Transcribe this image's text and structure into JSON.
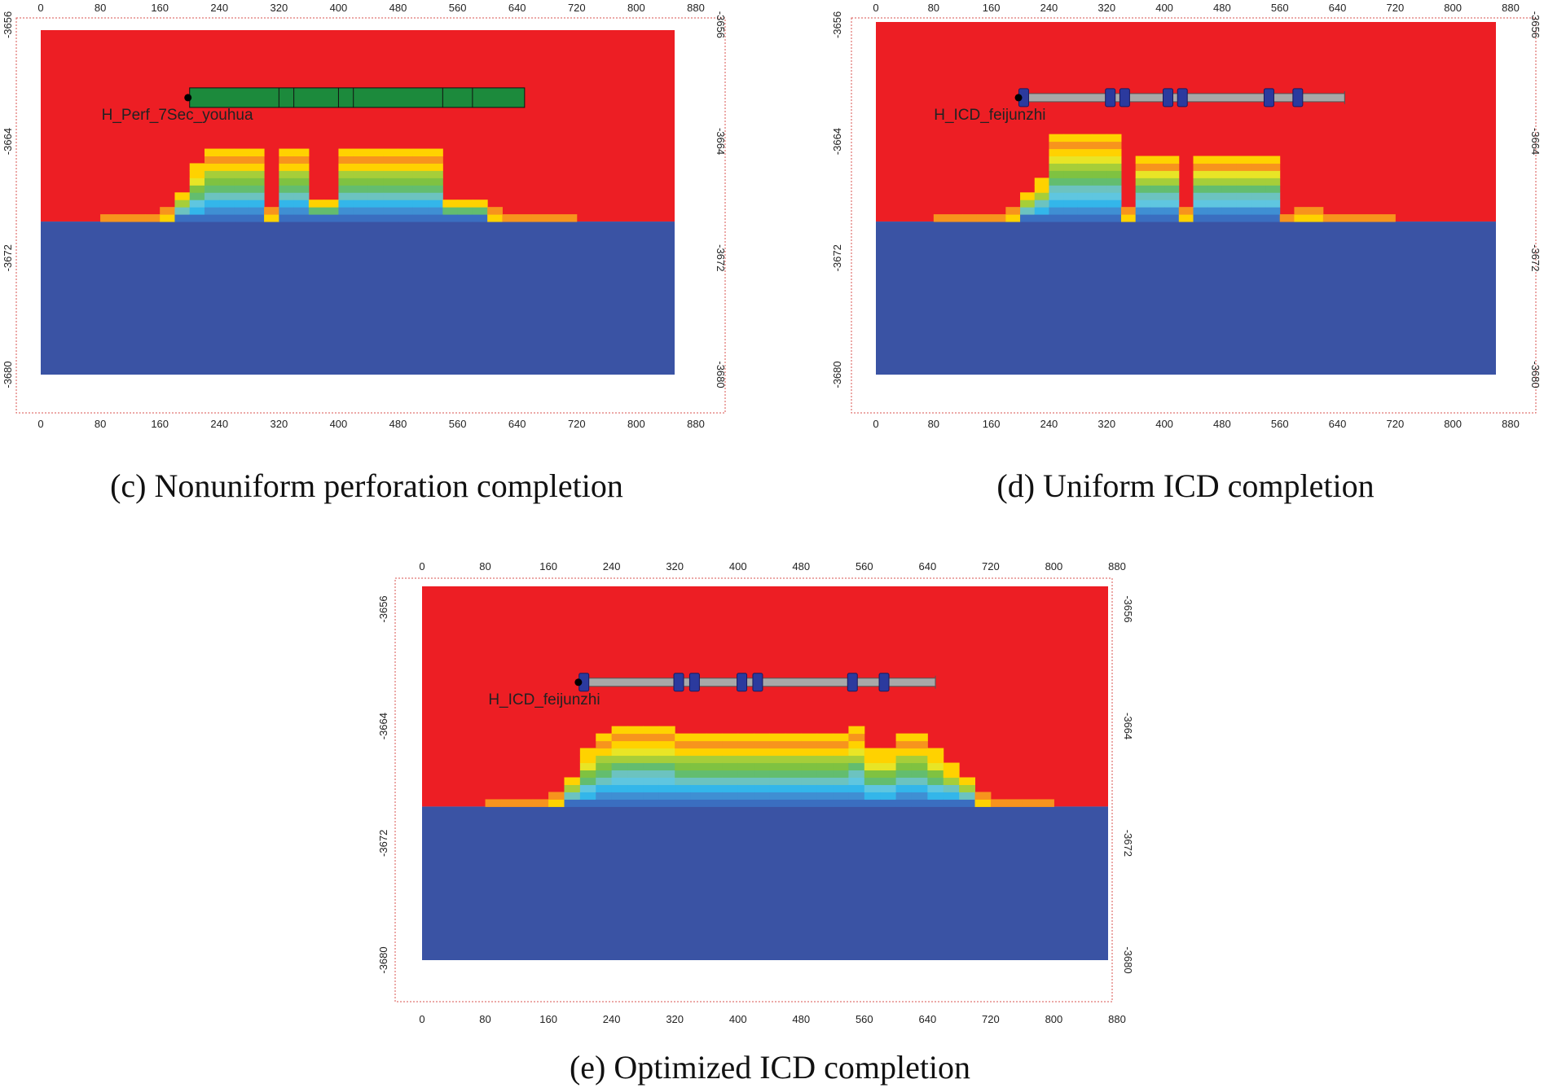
{
  "colors": {
    "oil": "#ED1E24",
    "water": "#3A53A4",
    "frame": "#D9534F",
    "perf_pipe": "#1C8A3C",
    "icd_pipe": "#A8A8A8",
    "icd_valve": "#2B3A9E",
    "ramp": [
      "#F05A24",
      "#F7941D",
      "#FFD200",
      "#E8E526",
      "#A6CE39",
      "#7FC241",
      "#63BD6F",
      "#6CC3C0",
      "#5FC6E0",
      "#33B6EA",
      "#3F8FD3",
      "#3A6EC0"
    ]
  },
  "axes": {
    "x_ticks": [
      "0",
      "80",
      "160",
      "240",
      "320",
      "400",
      "480",
      "560",
      "640",
      "720",
      "800",
      "880"
    ],
    "y_ticks": [
      "-3656",
      "-3664",
      "-3672",
      "-3680"
    ]
  },
  "panels": [
    {
      "id": "c",
      "caption": "(c) Nonuniform perforation completion",
      "well_label": "H_Perf_7Sec_youhua",
      "completion": "perforation",
      "well_x_start": 200,
      "well_x_end": 650,
      "well_depth": -3661,
      "segment_dividers_x": [
        320,
        340,
        400,
        420,
        540,
        580
      ],
      "contact_depth": -3669.5,
      "cone_profile": [
        [
          80,
          0.5
        ],
        [
          100,
          0.5
        ],
        [
          120,
          0.5
        ],
        [
          140,
          0.5
        ],
        [
          160,
          1
        ],
        [
          180,
          2
        ],
        [
          200,
          4
        ],
        [
          220,
          5
        ],
        [
          240,
          5
        ],
        [
          260,
          5
        ],
        [
          280,
          5
        ],
        [
          300,
          1
        ],
        [
          320,
          5
        ],
        [
          340,
          5
        ],
        [
          360,
          1.5
        ],
        [
          380,
          1.5
        ],
        [
          400,
          5
        ],
        [
          420,
          5
        ],
        [
          440,
          5
        ],
        [
          460,
          5
        ],
        [
          480,
          5
        ],
        [
          500,
          5
        ],
        [
          520,
          5
        ],
        [
          540,
          1.5
        ],
        [
          560,
          1.5
        ],
        [
          580,
          1.5
        ],
        [
          600,
          1
        ],
        [
          620,
          0.5
        ],
        [
          640,
          0.5
        ],
        [
          660,
          0.5
        ],
        [
          680,
          0.5
        ],
        [
          700,
          0.5
        ]
      ]
    },
    {
      "id": "d",
      "caption": "(d) Uniform ICD completion",
      "well_label": "H_ICD_feijunzhi",
      "completion": "icd",
      "well_x_start": 200,
      "well_x_end": 650,
      "well_depth": -3661,
      "icd_x": [
        205,
        325,
        345,
        405,
        425,
        545,
        585
      ],
      "contact_depth": -3669.5,
      "cone_profile": [
        [
          80,
          0.5
        ],
        [
          100,
          0.5
        ],
        [
          120,
          0.5
        ],
        [
          140,
          0.5
        ],
        [
          160,
          0.5
        ],
        [
          180,
          1
        ],
        [
          200,
          2
        ],
        [
          220,
          3
        ],
        [
          240,
          6
        ],
        [
          260,
          6
        ],
        [
          280,
          6
        ],
        [
          300,
          6
        ],
        [
          320,
          6
        ],
        [
          340,
          1
        ],
        [
          360,
          4.5
        ],
        [
          380,
          4.5
        ],
        [
          400,
          4.5
        ],
        [
          420,
          1
        ],
        [
          440,
          4.5
        ],
        [
          460,
          4.5
        ],
        [
          480,
          4.5
        ],
        [
          500,
          4.5
        ],
        [
          520,
          4.5
        ],
        [
          540,
          4.5
        ],
        [
          560,
          0.5
        ],
        [
          580,
          1
        ],
        [
          600,
          1
        ],
        [
          620,
          0.5
        ],
        [
          640,
          0.5
        ],
        [
          660,
          0.5
        ],
        [
          680,
          0.5
        ],
        [
          700,
          0.5
        ]
      ]
    },
    {
      "id": "e",
      "caption": "(e) Optimized ICD completion",
      "well_label": "H_ICD_feijunzhi",
      "completion": "icd",
      "well_x_start": 200,
      "well_x_end": 650,
      "well_depth": -3661,
      "icd_x": [
        205,
        325,
        345,
        405,
        425,
        545,
        585
      ],
      "contact_depth": -3669.5,
      "cone_profile": [
        [
          80,
          0.5
        ],
        [
          100,
          0.5
        ],
        [
          120,
          0.5
        ],
        [
          140,
          0.5
        ],
        [
          160,
          1
        ],
        [
          180,
          2
        ],
        [
          200,
          4
        ],
        [
          220,
          5
        ],
        [
          240,
          5.5
        ],
        [
          260,
          5.5
        ],
        [
          280,
          5.5
        ],
        [
          300,
          5.5
        ],
        [
          320,
          5
        ],
        [
          340,
          5
        ],
        [
          360,
          5
        ],
        [
          380,
          5
        ],
        [
          400,
          5
        ],
        [
          420,
          5
        ],
        [
          440,
          5
        ],
        [
          460,
          5
        ],
        [
          480,
          5
        ],
        [
          500,
          5
        ],
        [
          520,
          5
        ],
        [
          540,
          5.5
        ],
        [
          560,
          4
        ],
        [
          580,
          4
        ],
        [
          600,
          5
        ],
        [
          620,
          5
        ],
        [
          640,
          4
        ],
        [
          660,
          3
        ],
        [
          680,
          2
        ],
        [
          700,
          1
        ],
        [
          720,
          0.5
        ],
        [
          740,
          0.5
        ],
        [
          760,
          0.5
        ],
        [
          780,
          0.5
        ]
      ]
    }
  ]
}
